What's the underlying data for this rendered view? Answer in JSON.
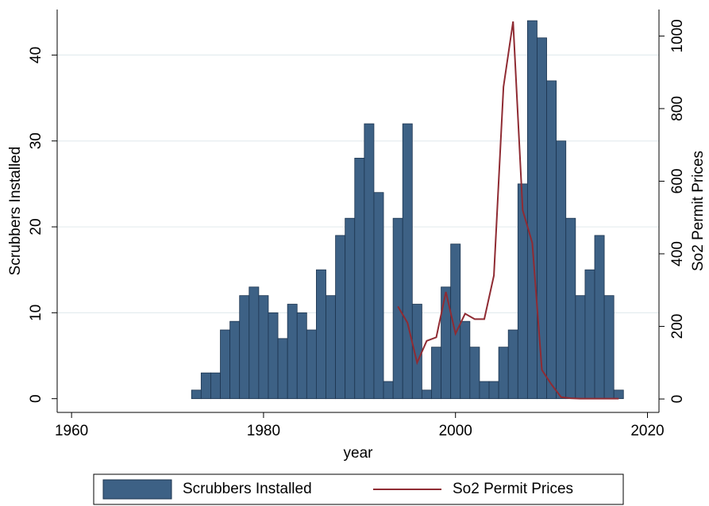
{
  "chart_data": {
    "type": "bar",
    "y_label": "Scrubbers Installed",
    "y2_label": "So2 Permit Prices",
    "x_label": "year",
    "x": [
      1973,
      1974,
      1975,
      1976,
      1977,
      1978,
      1979,
      1980,
      1981,
      1982,
      1983,
      1984,
      1985,
      1986,
      1987,
      1988,
      1989,
      1990,
      1991,
      1992,
      1993,
      1994,
      1995,
      1996,
      1997,
      1998,
      1999,
      2000,
      2001,
      2002,
      2003,
      2004,
      2005,
      2006,
      2007,
      2008,
      2009,
      2010,
      2011,
      2012,
      2013,
      2014,
      2015,
      2016,
      2017
    ],
    "series": [
      {
        "name": "Scrubbers Installed",
        "type": "bar",
        "color": "#3d6185",
        "values": [
          1,
          3,
          3,
          8,
          9,
          12,
          13,
          12,
          10,
          7,
          11,
          10,
          8,
          15,
          12,
          19,
          21,
          28,
          32,
          24,
          2,
          21,
          32,
          11,
          1,
          6,
          13,
          18,
          9,
          6,
          2,
          2,
          6,
          8,
          25,
          44,
          42,
          37,
          30,
          21,
          12,
          15,
          19,
          12,
          1
        ]
      },
      {
        "name": "So2 Permit Prices",
        "type": "line",
        "color": "#8f2b33",
        "axis": "y2",
        "values": [
          null,
          null,
          null,
          null,
          null,
          null,
          null,
          null,
          null,
          null,
          null,
          null,
          null,
          null,
          null,
          null,
          null,
          null,
          null,
          null,
          null,
          255,
          210,
          100,
          160,
          170,
          295,
          180,
          235,
          220,
          220,
          340,
          860,
          1040,
          520,
          430,
          80,
          40,
          5,
          2,
          1,
          1,
          1,
          1,
          1
        ]
      }
    ],
    "xlim": [
      1958.5,
      2021.2
    ],
    "xticks": [
      1960,
      1980,
      2000,
      2020
    ],
    "ylim": [
      -1.6,
      45.3
    ],
    "yticks": [
      0,
      10,
      20,
      30,
      40
    ],
    "y2lim": [
      -37,
      1073
    ],
    "y2ticks": [
      0,
      200,
      400,
      600,
      800,
      1000
    ],
    "grid": true,
    "legend": "bottom"
  }
}
